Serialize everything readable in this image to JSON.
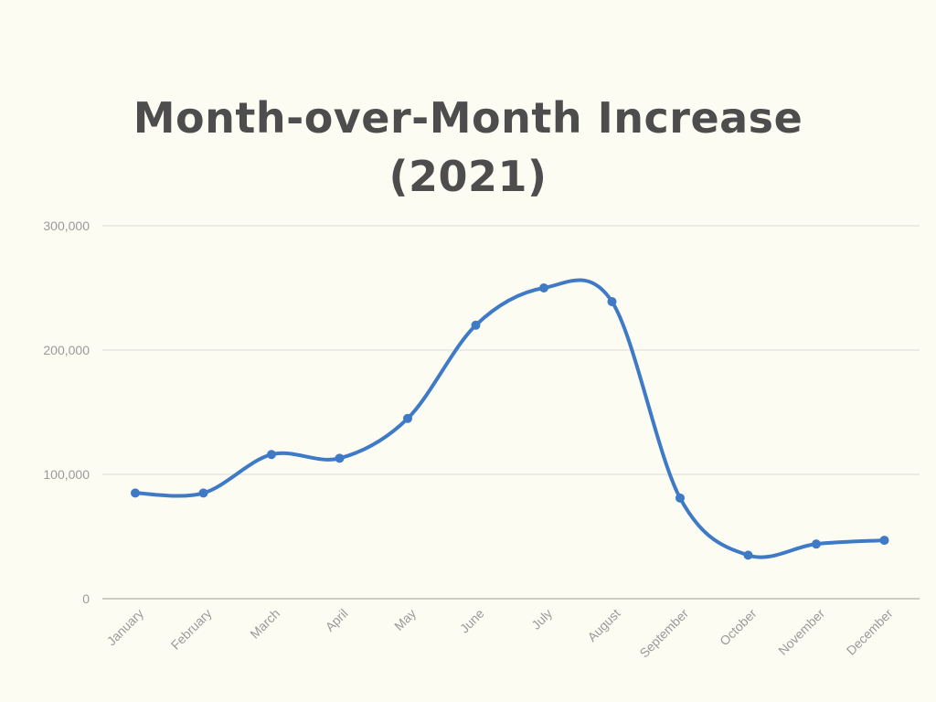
{
  "chart_data": {
    "type": "line",
    "title_line1": "Month-over-Month Increase",
    "title_line2": "(2021)",
    "xlabel": "",
    "ylabel": "",
    "categories": [
      "January",
      "February",
      "March",
      "April",
      "May",
      "June",
      "July",
      "August",
      "September",
      "October",
      "November",
      "December"
    ],
    "series": [
      {
        "values": [
          85000,
          85000,
          116000,
          113000,
          145000,
          220000,
          250000,
          239000,
          81000,
          35000,
          44000,
          47000
        ]
      }
    ],
    "ylim": [
      0,
      300000
    ],
    "yticks": [
      0,
      100000,
      200000,
      300000
    ],
    "ytick_labels": [
      "0",
      "100,000",
      "200,000",
      "300,000"
    ],
    "grid": true,
    "smooth": true,
    "line_color": "#3F7AC6",
    "grid_color": "#DDDDD5",
    "axis_color": "#BDBDB5",
    "text_color": "#4d4d4d"
  }
}
